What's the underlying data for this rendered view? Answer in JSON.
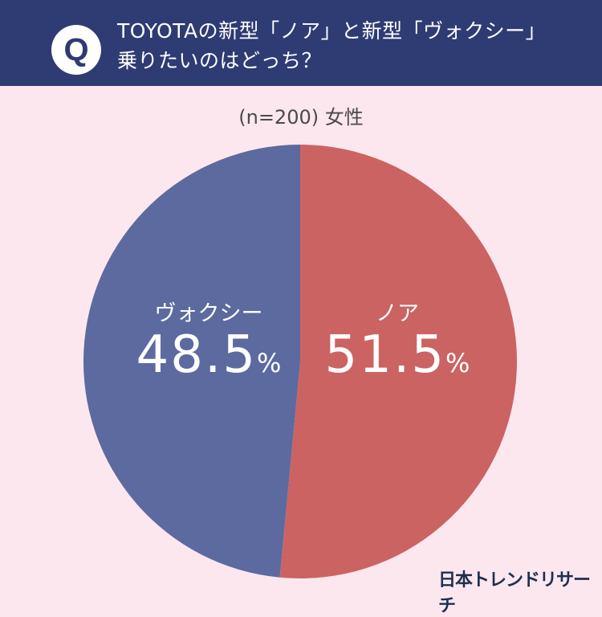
{
  "header": {
    "badge": "Q",
    "title_line1": "TOYOTAの新型「ノア」と新型「ヴォクシー」",
    "title_line2": "乗りたいのはどっち？"
  },
  "subtitle": "(n=200) 女性",
  "brand": "日本トレンドリサーチ",
  "colors": {
    "header_bg": "#2f3b73",
    "page_bg": "#fde7ef",
    "noa": "#cb6363",
    "voxy": "#5d6a9f"
  },
  "chart_data": {
    "type": "pie",
    "title": "TOYOTAの新型「ノア」と新型「ヴォクシー」乗りたいのはどっち？",
    "subtitle": "(n=200) 女性",
    "categories": [
      "ノア",
      "ヴォクシー"
    ],
    "values": [
      51.5,
      48.5
    ],
    "unit": "%",
    "colors": [
      "#cb6363",
      "#5d6a9f"
    ],
    "start_angle": "top, clockwise",
    "legend": "none (labels on slices)"
  },
  "labels": {
    "noa": {
      "name": "ノア",
      "value": "51.5",
      "unit": "%"
    },
    "voxy": {
      "name": "ヴォクシー",
      "value": "48.5",
      "unit": "%"
    }
  }
}
